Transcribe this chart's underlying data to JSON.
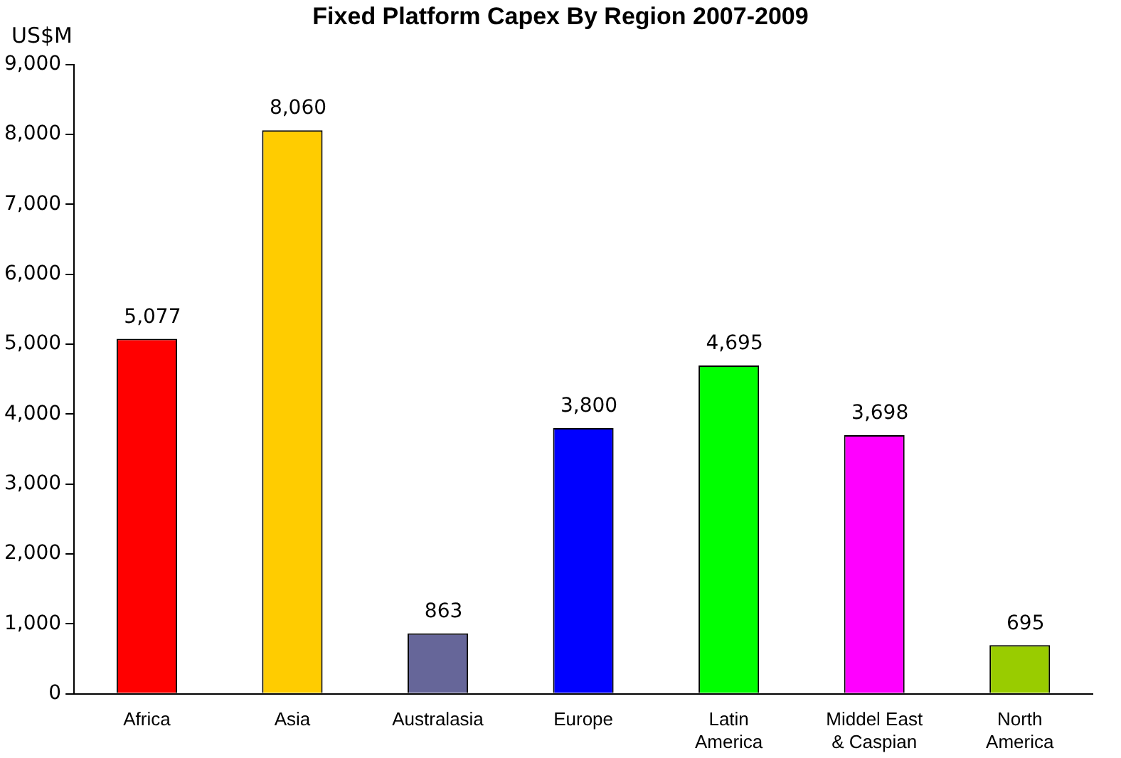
{
  "chart_data": {
    "type": "bar",
    "title": "Fixed Platform Capex By Region  2007-2009",
    "ylabel": "US$M",
    "categories": [
      "Africa",
      "Asia",
      "Australasia",
      "Europe",
      "Latin America",
      "Middel East & Caspian",
      "North America"
    ],
    "values": [
      5077,
      8060,
      863,
      3800,
      4695,
      3698,
      695
    ],
    "colors": [
      "#ff0000",
      "#ffcc00",
      "#666699",
      "#0000ff",
      "#00ff00",
      "#ff00ff",
      "#99cc00"
    ],
    "ylim": [
      0,
      9000
    ],
    "yticks": [
      {
        "value": 0,
        "label": "0"
      },
      {
        "value": 1000,
        "label": "1,000"
      },
      {
        "value": 2000,
        "label": "2,000"
      },
      {
        "value": 3000,
        "label": "3,000"
      },
      {
        "value": 4000,
        "label": "4,000"
      },
      {
        "value": 5000,
        "label": "5,000"
      },
      {
        "value": 6000,
        "label": "6,000"
      },
      {
        "value": 7000,
        "label": "7,000"
      },
      {
        "value": 8000,
        "label": "8,000"
      },
      {
        "value": 9000,
        "label": "9,000"
      }
    ],
    "value_labels": [
      "5,077",
      "8,060",
      "863",
      "3,800",
      "4,695",
      "3,698",
      "695"
    ],
    "grid": false,
    "legend": false
  }
}
